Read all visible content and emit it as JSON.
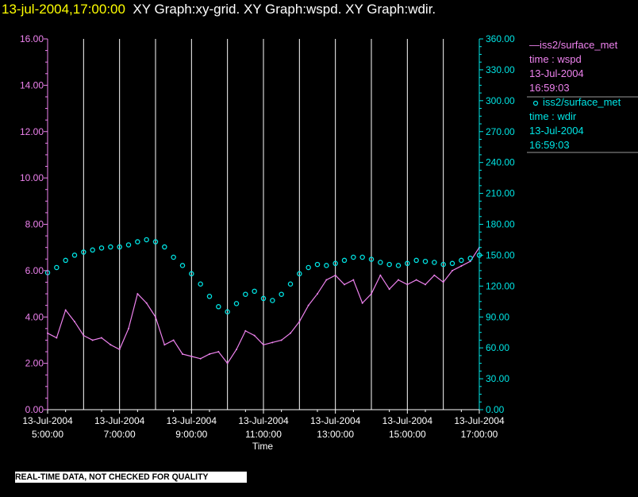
{
  "header": {
    "datetime": "13-jul-2004,17:00:00",
    "graphs_text": "XY Graph:xy-grid.  XY Graph:wspd.  XY Graph:wdir."
  },
  "colors": {
    "background": "#000000",
    "left_axis": "#ee82ee",
    "right_axis": "#00e5e5",
    "grid": "#ffffff",
    "title_date": "#ffff00"
  },
  "legend": {
    "wspd": {
      "line1": "iss2/surface_met",
      "line2": "time : wspd",
      "line3": "13-Jul-2004",
      "line4": "16:59:03"
    },
    "wdir": {
      "line1": "iss2/surface_met",
      "line2": "time : wdir",
      "line3": "13-Jul-2004",
      "line4": "16:59:03"
    }
  },
  "disclaimer": "REAL-TIME DATA, NOT CHECKED FOR QUALITY",
  "chart_data": {
    "type": "line",
    "xlabel": "Time",
    "x_range": [
      "13-Jul-2004 5:00:00",
      "13-Jul-2004 17:00:00"
    ],
    "x_tick_dates": [
      "13-Jul-2004",
      "13-Jul-2004",
      "13-Jul-2004",
      "13-Jul-2004",
      "13-Jul-2004",
      "13-Jul-2004",
      "13-Jul-2004"
    ],
    "x_tick_times": [
      "5:00:00",
      "7:00:00",
      "9:00:00",
      "11:00:00",
      "13:00:00",
      "15:00:00",
      "17:00:00"
    ],
    "x_tick_hours": [
      5,
      7,
      9,
      11,
      13,
      15,
      17
    ],
    "left_axis": {
      "ylim": [
        0,
        16
      ],
      "ticks": [
        "0.00",
        "2.00",
        "4.00",
        "6.00",
        "8.00",
        "10.00",
        "12.00",
        "14.00",
        "16.00"
      ],
      "tick_values": [
        0,
        2,
        4,
        6,
        8,
        10,
        12,
        14,
        16
      ]
    },
    "right_axis": {
      "ylim": [
        0,
        360
      ],
      "ticks": [
        "0.00",
        "30.00",
        "60.00",
        "90.00",
        "120.00",
        "150.00",
        "180.00",
        "210.00",
        "240.00",
        "270.00",
        "300.00",
        "330.00",
        "360.00"
      ],
      "tick_values": [
        0,
        30,
        60,
        90,
        120,
        150,
        180,
        210,
        240,
        270,
        300,
        330,
        360
      ]
    },
    "grid": "vertical",
    "series": [
      {
        "name": "iss2/surface_met time : wspd",
        "axis": "left",
        "style": "line",
        "x_hours": [
          5.0,
          5.25,
          5.5,
          5.75,
          6.0,
          6.25,
          6.5,
          6.75,
          7.0,
          7.25,
          7.5,
          7.75,
          8.0,
          8.25,
          8.5,
          8.75,
          9.0,
          9.25,
          9.5,
          9.75,
          10.0,
          10.25,
          10.5,
          10.75,
          11.0,
          11.25,
          11.5,
          11.75,
          12.0,
          12.25,
          12.5,
          12.75,
          13.0,
          13.25,
          13.5,
          13.75,
          14.0,
          14.25,
          14.5,
          14.75,
          15.0,
          15.25,
          15.5,
          15.75,
          16.0,
          16.25,
          16.5,
          16.75,
          17.0
        ],
        "values": [
          3.3,
          3.1,
          4.3,
          3.8,
          3.2,
          3.0,
          3.1,
          2.8,
          2.6,
          3.5,
          5.0,
          4.6,
          4.0,
          2.8,
          3.0,
          2.4,
          2.3,
          2.2,
          2.4,
          2.5,
          2.0,
          2.6,
          3.4,
          3.2,
          2.8,
          2.9,
          3.0,
          3.3,
          3.8,
          4.5,
          5.0,
          5.6,
          5.8,
          5.4,
          5.6,
          4.6,
          5.0,
          5.8,
          5.2,
          5.6,
          5.4,
          5.6,
          5.4,
          5.8,
          5.5,
          6.0,
          6.2,
          6.4,
          7.0
        ]
      },
      {
        "name": "iss2/surface_met time : wdir",
        "axis": "right",
        "style": "markers",
        "x_hours": [
          5.0,
          5.25,
          5.5,
          5.75,
          6.0,
          6.25,
          6.5,
          6.75,
          7.0,
          7.25,
          7.5,
          7.75,
          8.0,
          8.25,
          8.5,
          8.75,
          9.0,
          9.25,
          9.5,
          9.75,
          10.0,
          10.25,
          10.5,
          10.75,
          11.0,
          11.25,
          11.5,
          11.75,
          12.0,
          12.25,
          12.5,
          12.75,
          13.0,
          13.25,
          13.5,
          13.75,
          14.0,
          14.25,
          14.5,
          14.75,
          15.0,
          15.25,
          15.5,
          15.75,
          16.0,
          16.25,
          16.5,
          16.75,
          17.0
        ],
        "values": [
          133,
          138,
          145,
          150,
          153,
          155,
          157,
          158,
          158,
          160,
          163,
          165,
          163,
          158,
          148,
          140,
          132,
          122,
          110,
          100,
          95,
          103,
          112,
          115,
          108,
          106,
          112,
          122,
          132,
          138,
          141,
          140,
          142,
          145,
          148,
          148,
          146,
          143,
          141,
          140,
          142,
          145,
          144,
          143,
          141,
          142,
          145,
          147,
          150
        ]
      }
    ]
  }
}
